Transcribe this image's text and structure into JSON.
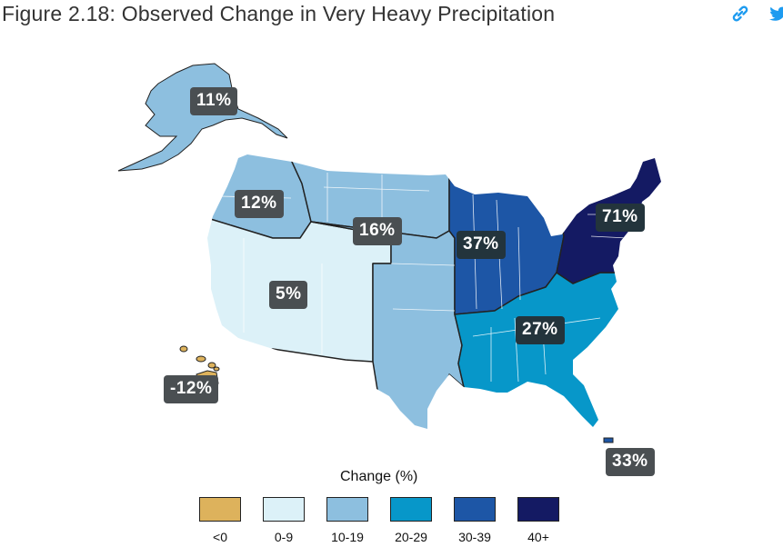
{
  "title": "Figure 2.18: Observed Change in Very Heavy Precipitation",
  "icons": {
    "link": "link-icon",
    "share": "twitter-icon"
  },
  "regions": {
    "alaska": {
      "label": "11%",
      "category": 2
    },
    "northwest": {
      "label": "12%",
      "category": 2
    },
    "great_plains_north": {
      "label": "16%",
      "category": 2
    },
    "southwest": {
      "label": "5%",
      "category": 1
    },
    "hawaii": {
      "label": "-12%",
      "category": 0
    },
    "midwest": {
      "label": "37%",
      "category": 4
    },
    "northeast": {
      "label": "71%",
      "category": 5
    },
    "southeast": {
      "label": "27%",
      "category": 3
    },
    "puerto_rico": {
      "label": "33%",
      "category": 4
    }
  },
  "legend": {
    "title": "Change (%)",
    "items": [
      {
        "label": "<0",
        "color": "#ddb25c"
      },
      {
        "label": "0-9",
        "color": "#dcf1f8"
      },
      {
        "label": "10-19",
        "color": "#8dbfdf"
      },
      {
        "label": "20-29",
        "color": "#0797c9"
      },
      {
        "label": "30-39",
        "color": "#1d56a6"
      },
      {
        "label": "40+",
        "color": "#141a63"
      }
    ]
  },
  "colors": {
    "border": "#222222",
    "state_line": "#ffffff"
  }
}
